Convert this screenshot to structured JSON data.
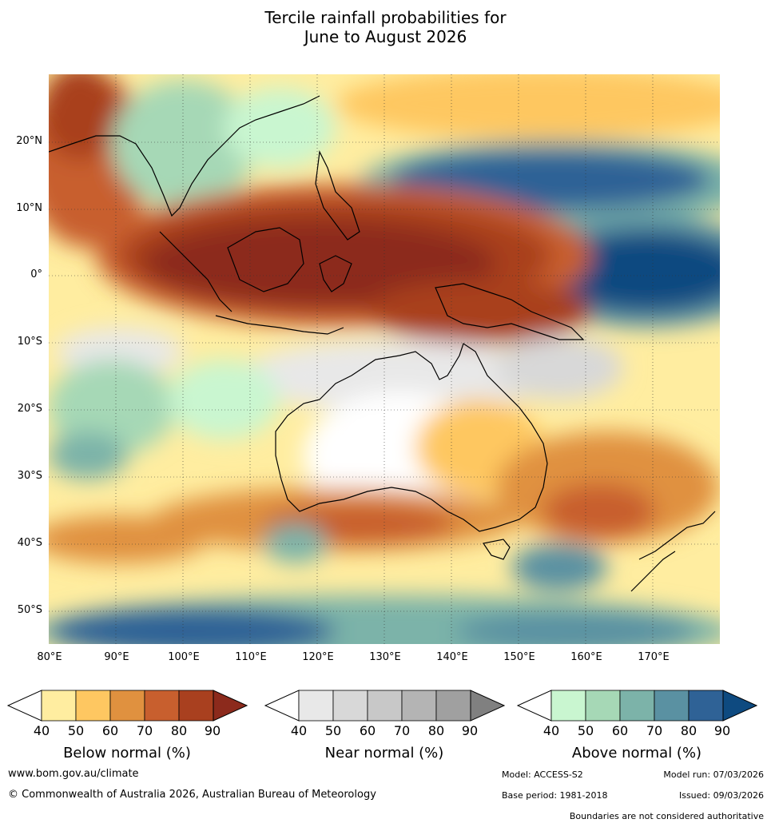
{
  "title": {
    "line1": "Tercile rainfall probabilities for",
    "line2": "June to August 2026"
  },
  "map": {
    "lon_range": [
      80,
      180
    ],
    "lat_range": [
      -55,
      30
    ],
    "lat_labels": [
      "20°N",
      "10°N",
      "0°",
      "10°S",
      "20°S",
      "30°S",
      "40°S",
      "50°S"
    ],
    "lon_labels": [
      "80°E",
      "90°E",
      "100°E",
      "110°E",
      "120°E",
      "130°E",
      "140°E",
      "150°E",
      "160°E",
      "170°E"
    ],
    "gridlines": true
  },
  "colorbars": [
    {
      "title": "Below normal (%)",
      "ticks": [
        "40",
        "50",
        "60",
        "70",
        "80",
        "90"
      ],
      "colors": [
        "#ffeda0",
        "#fec761",
        "#e0913f",
        "#c85f2e",
        "#a9401f",
        "#8c2a1c"
      ]
    },
    {
      "title": "Near normal (%)",
      "ticks": [
        "40",
        "50",
        "60",
        "70",
        "80",
        "90"
      ],
      "colors": [
        "#e8e8e8",
        "#d8d8d8",
        "#c8c8c8",
        "#b4b4b4",
        "#a0a0a0",
        "#808080"
      ]
    },
    {
      "title": "Above normal (%)",
      "ticks": [
        "40",
        "50",
        "60",
        "70",
        "80",
        "90"
      ],
      "colors": [
        "#c9f6d0",
        "#a6d8b6",
        "#7cb3a9",
        "#5a91a2",
        "#2f6296",
        "#0e4a80"
      ]
    }
  ],
  "footer": {
    "website": "www.bom.gov.au/climate",
    "copyright": "© Commonwealth of Australia 2026, Australian Bureau of Meteorology",
    "model": "Model: ACCESS-S2",
    "model_run": "Model run: 07/03/2026",
    "base_period": "Base period: 1981-2018",
    "issued": "Issued: 09/03/2026",
    "disclaimer": "Boundaries are not considered authoritative"
  }
}
